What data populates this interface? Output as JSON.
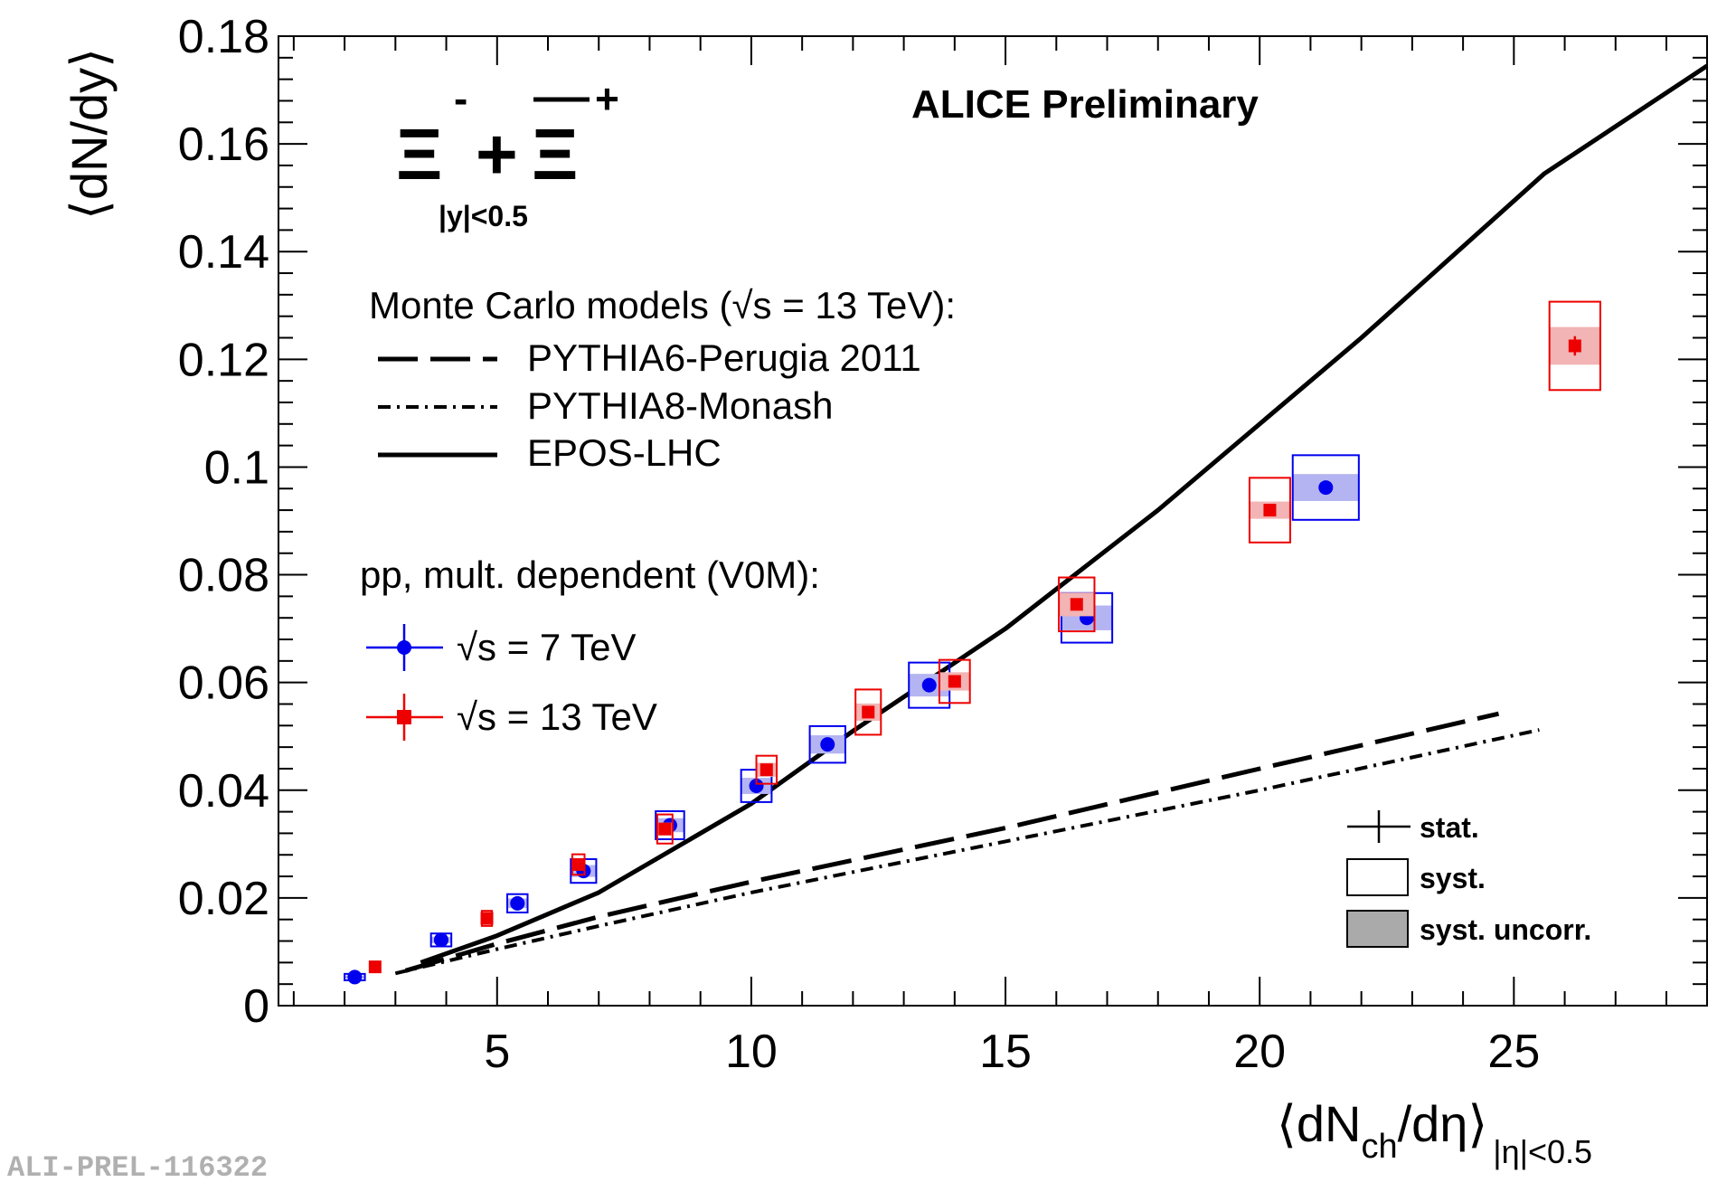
{
  "figure_id": "ALI-PREL-116322",
  "chart_data": {
    "type": "scatter",
    "title": "ALICE Preliminary",
    "particle": {
      "main": "Ξ",
      "minus": "-",
      "plus": "+",
      "op": "+",
      "rapidity": "|y|<0.5"
    },
    "ylabel": "⟨dN/dy⟩",
    "xlabel": {
      "main": "⟨dN",
      "sub": "ch",
      "tail": "/dη⟩",
      "range": "|η|<0.5"
    },
    "xlim": [
      0.7,
      28.8
    ],
    "ylim": [
      0,
      0.18
    ],
    "xticks": [
      5,
      10,
      15,
      20,
      25
    ],
    "xtick_labels": [
      "5",
      "10",
      "15",
      "20",
      "25"
    ],
    "yticks": [
      0,
      0.02,
      0.04,
      0.06,
      0.08,
      0.1,
      0.12,
      0.14,
      0.16,
      0.18
    ],
    "ytick_labels": [
      "0",
      "0.02",
      "0.04",
      "0.06",
      "0.08",
      "0.1",
      "0.12",
      "0.14",
      "0.16",
      "0.18"
    ],
    "models_legend": {
      "header": "Monte Carlo models (√s = 13 TeV):",
      "entries": [
        "PYTHIA6-Perugia 2011",
        "PYTHIA8-Monash",
        "EPOS-LHC"
      ]
    },
    "data_legend": {
      "header": "pp, mult. dependent (V0M):",
      "entries": [
        "√s = 7 TeV",
        "√s = 13 TeV"
      ]
    },
    "unc_legend": [
      "stat.",
      "syst.",
      "syst. uncorr."
    ],
    "series": [
      {
        "name": "√s = 7 TeV",
        "color": "#0000ee",
        "fill": "#b4b4f2",
        "marker": "circle",
        "x": [
          2.2,
          3.9,
          5.4,
          6.7,
          8.4,
          10.1,
          11.5,
          13.5,
          16.6,
          21.3
        ],
        "y": [
          0.0053,
          0.0122,
          0.019,
          0.025,
          0.0335,
          0.0408,
          0.0485,
          0.0595,
          0.072,
          0.0962
        ],
        "syst": [
          0.0006,
          0.0012,
          0.0017,
          0.0022,
          0.0026,
          0.003,
          0.0034,
          0.0042,
          0.0046,
          0.006
        ],
        "syst_uncorr": [
          0.0003,
          0.0006,
          0.0009,
          0.0011,
          0.0013,
          0.0015,
          0.0017,
          0.0021,
          0.0023,
          0.0025
        ],
        "stat": [
          0.0002,
          0.0002,
          0.0003,
          0.0004,
          0.0004,
          0.0005,
          0.0005,
          0.0006,
          0.0007,
          0.0012
        ],
        "box_halfwidth": [
          0.2,
          0.2,
          0.2,
          0.25,
          0.28,
          0.3,
          0.35,
          0.4,
          0.5,
          0.65
        ]
      },
      {
        "name": "√s = 13 TeV",
        "color": "#ee0000",
        "fill": "#f2b4b4",
        "marker": "square",
        "x": [
          2.6,
          4.8,
          6.6,
          8.3,
          10.3,
          12.3,
          14.0,
          16.4,
          20.2,
          26.2
        ],
        "y": [
          0.0072,
          0.0162,
          0.0262,
          0.0328,
          0.0438,
          0.0545,
          0.0602,
          0.0745,
          0.092,
          0.1225
        ],
        "syst": [
          0.0007,
          0.0014,
          0.0019,
          0.0027,
          0.0026,
          0.0042,
          0.004,
          0.005,
          0.006,
          0.0082
        ],
        "syst_uncorr": [
          0.0004,
          0.0007,
          0.0009,
          0.0012,
          0.0013,
          0.0016,
          0.0017,
          0.0022,
          0.0016,
          0.0035
        ],
        "stat": [
          0.0002,
          0.0003,
          0.0003,
          0.0004,
          0.0004,
          0.0005,
          0.0005,
          0.0006,
          0.0008,
          0.0018
        ],
        "box_halfwidth": [
          0.1,
          0.1,
          0.12,
          0.15,
          0.2,
          0.25,
          0.3,
          0.35,
          0.4,
          0.5
        ]
      }
    ],
    "models": [
      {
        "name": "PYTHIA6-Perugia 2011",
        "style": "dashed",
        "x": [
          3.2,
          5,
          7,
          10,
          15,
          20,
          24.7
        ],
        "y": [
          0.0065,
          0.0115,
          0.0165,
          0.023,
          0.033,
          0.044,
          0.0542
        ]
      },
      {
        "name": "PYTHIA8-Monash",
        "style": "dashdot",
        "x": [
          3.0,
          5,
          7,
          10,
          15,
          20,
          25.5
        ],
        "y": [
          0.006,
          0.0105,
          0.0148,
          0.021,
          0.0305,
          0.04,
          0.0512
        ]
      },
      {
        "name": "EPOS-LHC",
        "style": "solid",
        "x": [
          3.5,
          5,
          7,
          10,
          12,
          15,
          18,
          22,
          25.6,
          28.8
        ],
        "y": [
          0.008,
          0.013,
          0.021,
          0.0375,
          0.051,
          0.07,
          0.092,
          0.124,
          0.1545,
          0.1745
        ]
      }
    ]
  }
}
